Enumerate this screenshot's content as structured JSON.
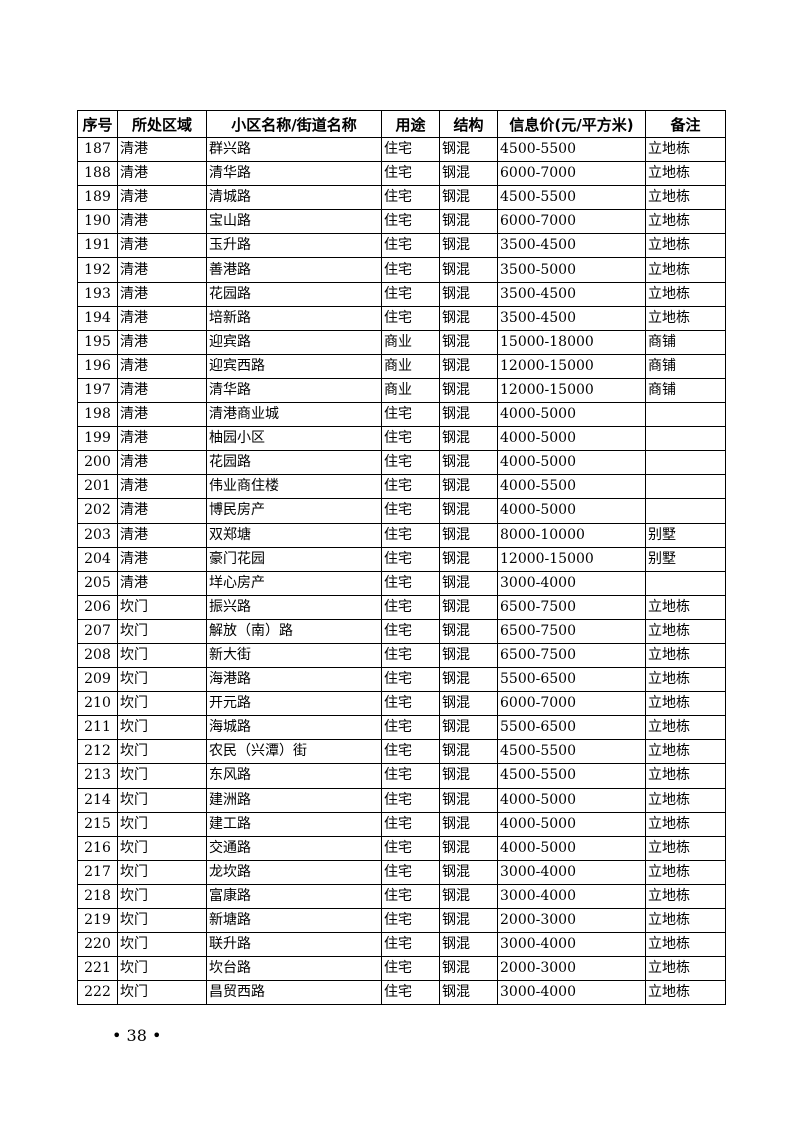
{
  "table": {
    "headers": [
      "序号",
      "所处区域",
      "小区名称/街道名称",
      "用途",
      "结构",
      "信息价(元/平方米)",
      "备注"
    ],
    "rows": [
      [
        "187",
        "清港",
        "群兴路",
        "住宅",
        "钢混",
        "4500-5500",
        "立地栋"
      ],
      [
        "188",
        "清港",
        "清华路",
        "住宅",
        "钢混",
        "6000-7000",
        "立地栋"
      ],
      [
        "189",
        "清港",
        "清城路",
        "住宅",
        "钢混",
        "4500-5500",
        "立地栋"
      ],
      [
        "190",
        "清港",
        "宝山路",
        "住宅",
        "钢混",
        "6000-7000",
        "立地栋"
      ],
      [
        "191",
        "清港",
        "玉升路",
        "住宅",
        "钢混",
        "3500-4500",
        "立地栋"
      ],
      [
        "192",
        "清港",
        "善港路",
        "住宅",
        "钢混",
        "3500-5000",
        "立地栋"
      ],
      [
        "193",
        "清港",
        "花园路",
        "住宅",
        "钢混",
        "3500-4500",
        "立地栋"
      ],
      [
        "194",
        "清港",
        "培新路",
        "住宅",
        "钢混",
        "3500-4500",
        "立地栋"
      ],
      [
        "195",
        "清港",
        "迎宾路",
        "商业",
        "钢混",
        "15000-18000",
        "商铺"
      ],
      [
        "196",
        "清港",
        "迎宾西路",
        "商业",
        "钢混",
        "12000-15000",
        "商铺"
      ],
      [
        "197",
        "清港",
        "清华路",
        "商业",
        "钢混",
        "12000-15000",
        "商铺"
      ],
      [
        "198",
        "清港",
        "清港商业城",
        "住宅",
        "钢混",
        "4000-5000",
        ""
      ],
      [
        "199",
        "清港",
        "柚园小区",
        "住宅",
        "钢混",
        "4000-5000",
        ""
      ],
      [
        "200",
        "清港",
        "花园路",
        "住宅",
        "钢混",
        "4000-5000",
        ""
      ],
      [
        "201",
        "清港",
        "伟业商住楼",
        "住宅",
        "钢混",
        "4000-5500",
        ""
      ],
      [
        "202",
        "清港",
        "博民房产",
        "住宅",
        "钢混",
        "4000-5000",
        ""
      ],
      [
        "203",
        "清港",
        "双郑塘",
        "住宅",
        "钢混",
        "8000-10000",
        "别墅"
      ],
      [
        "204",
        "清港",
        "豪门花园",
        "住宅",
        "钢混",
        "12000-15000",
        "别墅"
      ],
      [
        "205",
        "清港",
        "垟心房产",
        "住宅",
        "钢混",
        "3000-4000",
        ""
      ],
      [
        "206",
        "坎门",
        "振兴路",
        "住宅",
        "钢混",
        "6500-7500",
        "立地栋"
      ],
      [
        "207",
        "坎门",
        "解放（南）路",
        "住宅",
        "钢混",
        "6500-7500",
        "立地栋"
      ],
      [
        "208",
        "坎门",
        "新大街",
        "住宅",
        "钢混",
        "6500-7500",
        "立地栋"
      ],
      [
        "209",
        "坎门",
        "海港路",
        "住宅",
        "钢混",
        "5500-6500",
        "立地栋"
      ],
      [
        "210",
        "坎门",
        "开元路",
        "住宅",
        "钢混",
        "6000-7000",
        "立地栋"
      ],
      [
        "211",
        "坎门",
        "海城路",
        "住宅",
        "钢混",
        "5500-6500",
        "立地栋"
      ],
      [
        "212",
        "坎门",
        "农民（兴潭）街",
        "住宅",
        "钢混",
        "4500-5500",
        "立地栋"
      ],
      [
        "213",
        "坎门",
        "东风路",
        "住宅",
        "钢混",
        "4500-5500",
        "立地栋"
      ],
      [
        "214",
        "坎门",
        "建洲路",
        "住宅",
        "钢混",
        "4000-5000",
        "立地栋"
      ],
      [
        "215",
        "坎门",
        "建工路",
        "住宅",
        "钢混",
        "4000-5000",
        "立地栋"
      ],
      [
        "216",
        "坎门",
        "交通路",
        "住宅",
        "钢混",
        "4000-5000",
        "立地栋"
      ],
      [
        "217",
        "坎门",
        "龙坎路",
        "住宅",
        "钢混",
        "3000-4000",
        "立地栋"
      ],
      [
        "218",
        "坎门",
        "富康路",
        "住宅",
        "钢混",
        "3000-4000",
        "立地栋"
      ],
      [
        "219",
        "坎门",
        "新塘路",
        "住宅",
        "钢混",
        "2000-3000",
        "立地栋"
      ],
      [
        "220",
        "坎门",
        "联升路",
        "住宅",
        "钢混",
        "3000-4000",
        "立地栋"
      ],
      [
        "221",
        "坎门",
        "坎台路",
        "住宅",
        "钢混",
        "2000-3000",
        "立地栋"
      ],
      [
        "222",
        "坎门",
        "昌贸西路",
        "住宅",
        "钢混",
        "3000-4000",
        "立地栋"
      ]
    ]
  },
  "footer": {
    "page_number": "• 38 •"
  }
}
